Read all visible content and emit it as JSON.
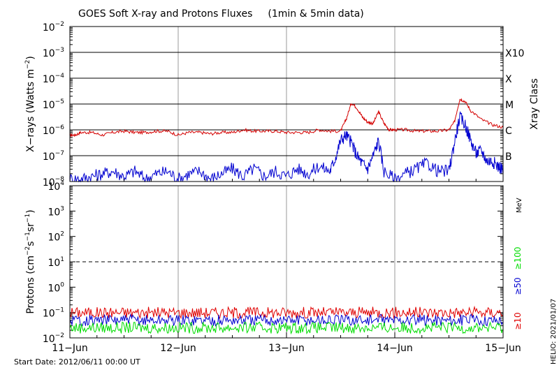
{
  "chart_data": [
    {
      "type": "line",
      "title": "GOES Soft X-ray and Protons Fluxes",
      "subtitle": "(1min & 5min data)",
      "ylabel": "X-rays (Watts m^-2)",
      "ylabel_parts": [
        "X−rays (Watts m",
        "−2",
        ")"
      ],
      "yscale": "log",
      "ylim_exp": [
        -8,
        -2
      ],
      "ytick_exps": [
        -8,
        -7,
        -6,
        -5,
        -4,
        -3,
        -2
      ],
      "right_label": "Xray Class",
      "class_labels": [
        {
          "label": "X10",
          "exp": -3
        },
        {
          "label": "X",
          "exp": -4
        },
        {
          "label": "M",
          "exp": -5
        },
        {
          "label": "C",
          "exp": -6
        },
        {
          "label": "B",
          "exp": -7
        }
      ],
      "series": [
        {
          "color": "#d40000",
          "points": [
            [
              0,
              -6.2
            ],
            [
              0.05,
              -6.2
            ],
            [
              0.1,
              -6.1
            ],
            [
              0.2,
              -6.1
            ],
            [
              0.3,
              -6.2
            ],
            [
              0.4,
              -6.1
            ],
            [
              0.5,
              -6.05
            ],
            [
              0.6,
              -6.1
            ],
            [
              0.7,
              -6.1
            ],
            [
              0.8,
              -6.05
            ],
            [
              0.9,
              -6.05
            ],
            [
              1.0,
              -6.2
            ],
            [
              1.1,
              -6.1
            ],
            [
              1.2,
              -6.1
            ],
            [
              1.3,
              -6.15
            ],
            [
              1.4,
              -6.1
            ],
            [
              1.5,
              -6.1
            ],
            [
              1.6,
              -6.0
            ],
            [
              1.7,
              -6.05
            ],
            [
              1.8,
              -6.05
            ],
            [
              1.9,
              -6.05
            ],
            [
              2.0,
              -6.1
            ],
            [
              2.1,
              -6.1
            ],
            [
              2.2,
              -6.1
            ],
            [
              2.3,
              -6.0
            ],
            [
              2.4,
              -6.05
            ],
            [
              2.5,
              -6.05
            ],
            [
              2.55,
              -5.6
            ],
            [
              2.6,
              -4.95
            ],
            [
              2.65,
              -5.15
            ],
            [
              2.7,
              -5.5
            ],
            [
              2.75,
              -5.7
            ],
            [
              2.8,
              -5.75
            ],
            [
              2.85,
              -5.3
            ],
            [
              2.9,
              -5.75
            ],
            [
              2.95,
              -6.0
            ],
            [
              3.0,
              -6.0
            ],
            [
              3.1,
              -6.0
            ],
            [
              3.2,
              -6.05
            ],
            [
              3.3,
              -6.05
            ],
            [
              3.4,
              -6.05
            ],
            [
              3.5,
              -6.0
            ],
            [
              3.55,
              -5.7
            ],
            [
              3.6,
              -4.8
            ],
            [
              3.65,
              -4.9
            ],
            [
              3.7,
              -5.25
            ],
            [
              3.8,
              -5.6
            ],
            [
              3.9,
              -5.8
            ],
            [
              4.0,
              -5.9
            ]
          ]
        },
        {
          "color": "#0000d0",
          "points": [
            [
              0,
              -8.0
            ],
            [
              0.1,
              -8.0
            ],
            [
              0.2,
              -7.9
            ],
            [
              0.3,
              -7.8
            ],
            [
              0.4,
              -7.7
            ],
            [
              0.5,
              -7.9
            ],
            [
              0.6,
              -7.7
            ],
            [
              0.7,
              -8.0
            ],
            [
              0.8,
              -7.8
            ],
            [
              0.9,
              -7.7
            ],
            [
              1.0,
              -8.0
            ],
            [
              1.1,
              -7.8
            ],
            [
              1.2,
              -7.7
            ],
            [
              1.3,
              -8.0
            ],
            [
              1.4,
              -7.8
            ],
            [
              1.5,
              -7.6
            ],
            [
              1.6,
              -7.9
            ],
            [
              1.7,
              -7.6
            ],
            [
              1.8,
              -7.9
            ],
            [
              1.9,
              -7.7
            ],
            [
              2.0,
              -7.9
            ],
            [
              2.1,
              -7.6
            ],
            [
              2.2,
              -7.8
            ],
            [
              2.3,
              -7.5
            ],
            [
              2.4,
              -7.7
            ],
            [
              2.45,
              -7.2
            ],
            [
              2.5,
              -6.5
            ],
            [
              2.55,
              -6.3
            ],
            [
              2.6,
              -6.6
            ],
            [
              2.65,
              -7.1
            ],
            [
              2.7,
              -7.4
            ],
            [
              2.75,
              -7.6
            ],
            [
              2.8,
              -7.1
            ],
            [
              2.85,
              -6.5
            ],
            [
              2.9,
              -7.7
            ],
            [
              3.0,
              -8.0
            ],
            [
              3.1,
              -7.8
            ],
            [
              3.2,
              -7.6
            ],
            [
              3.3,
              -7.4
            ],
            [
              3.4,
              -7.7
            ],
            [
              3.5,
              -7.7
            ],
            [
              3.55,
              -6.6
            ],
            [
              3.6,
              -5.6
            ],
            [
              3.65,
              -5.9
            ],
            [
              3.7,
              -6.5
            ],
            [
              3.75,
              -7.0
            ],
            [
              3.8,
              -6.9
            ],
            [
              3.85,
              -7.3
            ],
            [
              3.9,
              -7.3
            ],
            [
              3.95,
              -7.5
            ],
            [
              4.0,
              -7.6
            ]
          ]
        }
      ]
    },
    {
      "type": "line",
      "ylabel": "Protons (cm^-2s^-1sr^-1)",
      "ylabel_parts": [
        "Protons (cm",
        "−2",
        "s",
        "−1",
        "sr",
        "−1",
        ")"
      ],
      "yscale": "log",
      "ylim_exp": [
        -2,
        4
      ],
      "ytick_exps": [
        -2,
        -1,
        0,
        1,
        2,
        3,
        4
      ],
      "threshold_exp": 1,
      "right_unit": "MeV",
      "series": [
        {
          "name": "≥10",
          "color": "#e00000",
          "level": -1.0
        },
        {
          "name": "≥50",
          "color": "#0000d0",
          "level": -1.3
        },
        {
          "name": "≥100",
          "color": "#00dd00",
          "level": -1.6
        }
      ]
    }
  ],
  "x_ticks": [
    "11−Jun",
    "12−Jun",
    "13−Jun",
    "14−Jun",
    "15−Jun"
  ],
  "footer": {
    "start_date": "Start Date: 2012/06/11 00:00 UT",
    "credit": "HELIO: 2021/01/07"
  }
}
